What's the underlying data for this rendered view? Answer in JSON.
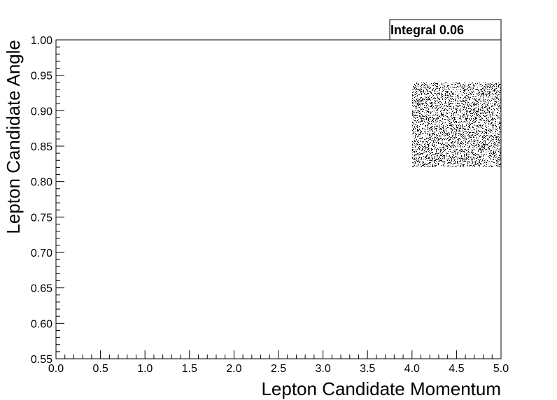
{
  "chart_data": {
    "type": "scatter",
    "title": "",
    "xlabel": "Lepton Candidate Momentum",
    "ylabel": "Lepton Candidate Angle",
    "xlim": [
      0.0,
      5.0
    ],
    "ylim": [
      0.55,
      1.0
    ],
    "x_ticks": [
      "0.0",
      "0.5",
      "1.0",
      "1.5",
      "2.0",
      "2.5",
      "3.0",
      "3.5",
      "4.0",
      "4.5",
      "5.0"
    ],
    "y_ticks": [
      "0.55",
      "0.60",
      "0.65",
      "0.70",
      "0.75",
      "0.80",
      "0.85",
      "0.90",
      "0.95",
      "1.00"
    ],
    "x_minor_per_major": 5,
    "y_minor_per_major": 5,
    "grid": false,
    "legend": "none",
    "stat_box": {
      "text": "Integral 0.06",
      "placement": "top-right"
    },
    "filled_region": {
      "x_range": [
        4.0,
        5.0
      ],
      "y_range": [
        0.82,
        0.94
      ],
      "density": 0.22,
      "marker_color": "#000000"
    }
  }
}
